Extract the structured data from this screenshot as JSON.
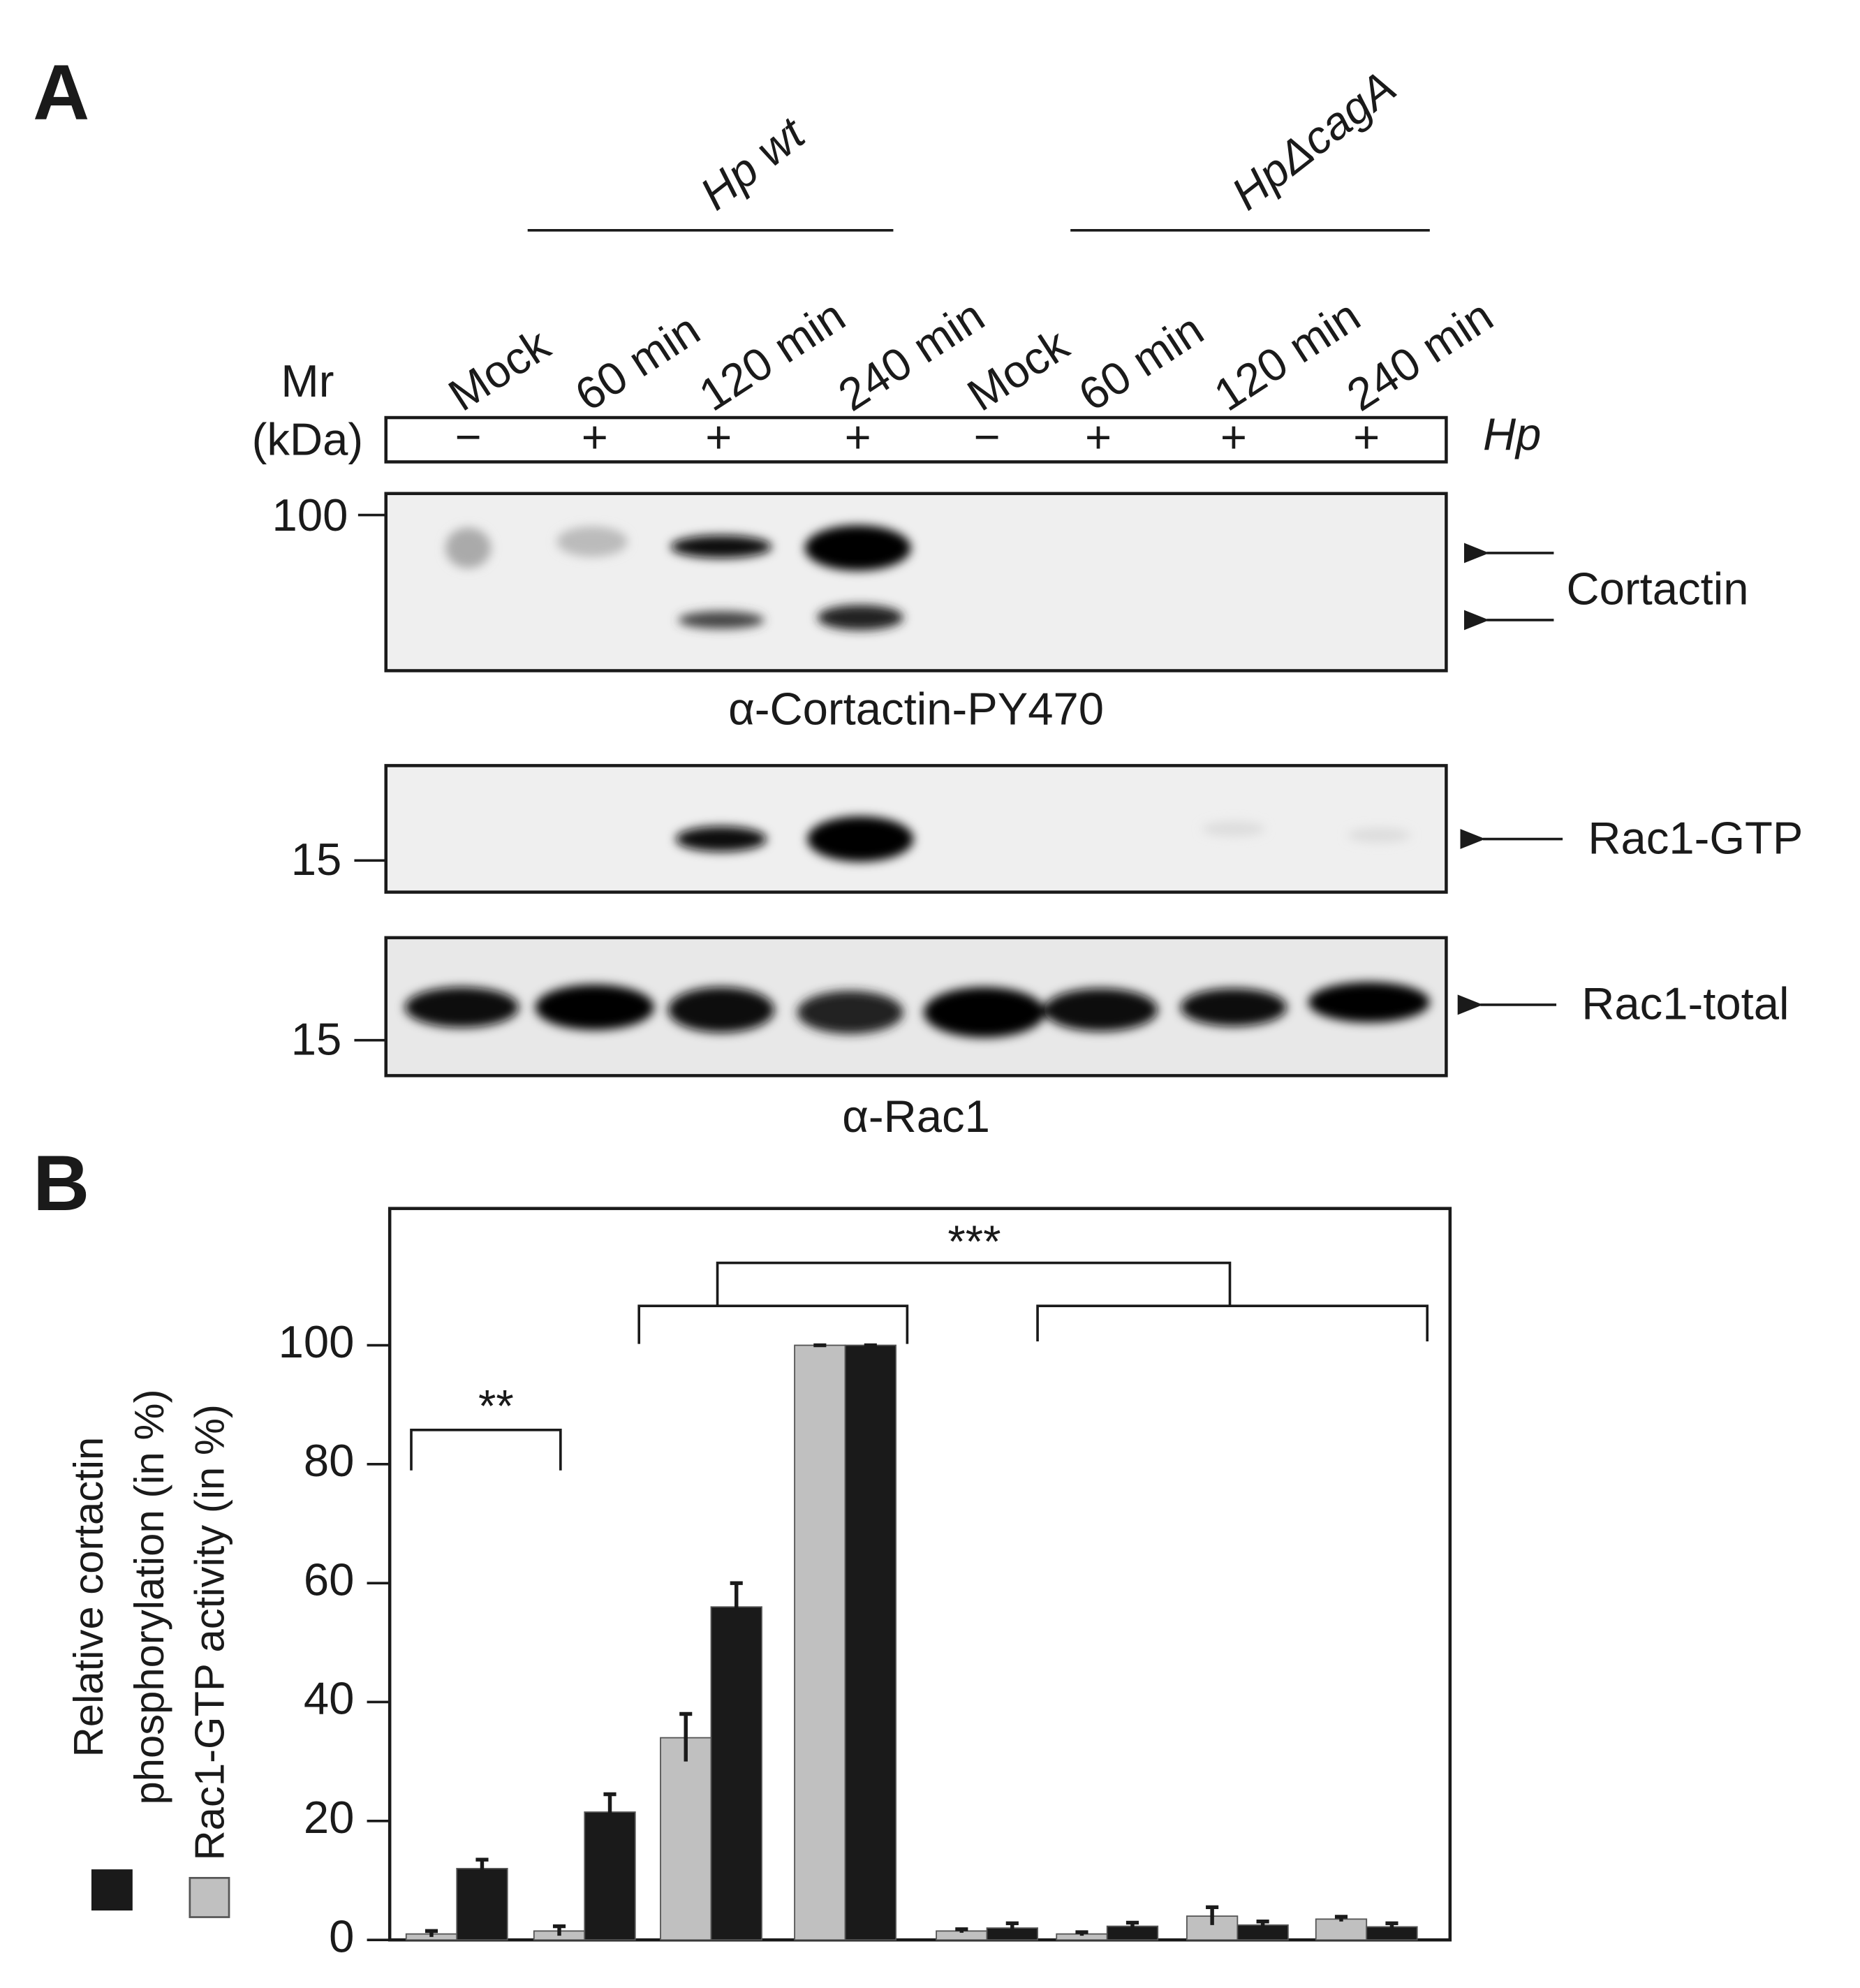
{
  "panel_labels": [
    "A",
    "B"
  ],
  "panel_a": {
    "groups": [
      "Hp wt",
      "HpΔcagA"
    ],
    "mr_label": [
      "Mr",
      "(kDa)"
    ],
    "hp_label": "Hp",
    "lanes": [
      {
        "label": "Mock",
        "hp": "−"
      },
      {
        "label": "60 min",
        "hp": "+"
      },
      {
        "label": "120 min",
        "hp": "+"
      },
      {
        "label": "240 min",
        "hp": "+"
      },
      {
        "label": "Mock",
        "hp": "−"
      },
      {
        "label": "60 min",
        "hp": "+"
      },
      {
        "label": "120 min",
        "hp": "+"
      },
      {
        "label": "240 min",
        "hp": "+"
      }
    ],
    "blots": [
      {
        "marker": "100",
        "targets": [
          "Cortactin"
        ],
        "antibody": "α-Cortactin-PY470"
      },
      {
        "marker": "15",
        "targets": [
          "Rac1-GTP"
        ]
      },
      {
        "marker": "15",
        "targets": [
          "Rac1-total"
        ],
        "antibody": "α-Rac1"
      }
    ]
  },
  "chart_data": {
    "type": "bar",
    "categories": [
      null,
      null,
      null,
      null,
      null,
      null,
      null,
      null
    ],
    "series": [
      {
        "name": "Rac1-GTP activity (in %)",
        "color": "#c0c0c0",
        "values": [
          1,
          1.5,
          34,
          100,
          1.5,
          1,
          4,
          3.5
        ],
        "errors": [
          0.5,
          0.8,
          4,
          0,
          0.3,
          0.3,
          1.5,
          0.4
        ]
      },
      {
        "name": "Relative cortactin phosphorylation (in %)",
        "color": "#1a1a1a",
        "values": [
          12,
          21.5,
          56,
          100,
          2,
          2.3,
          2.5,
          2.2
        ],
        "errors": [
          1.5,
          3,
          4,
          0,
          0.8,
          0.6,
          0.6,
          0.6
        ]
      }
    ],
    "ylim": [
      0,
      123
    ],
    "yticks": [
      0,
      20,
      40,
      60,
      80,
      100
    ],
    "annotations": [
      "**",
      "***"
    ]
  }
}
